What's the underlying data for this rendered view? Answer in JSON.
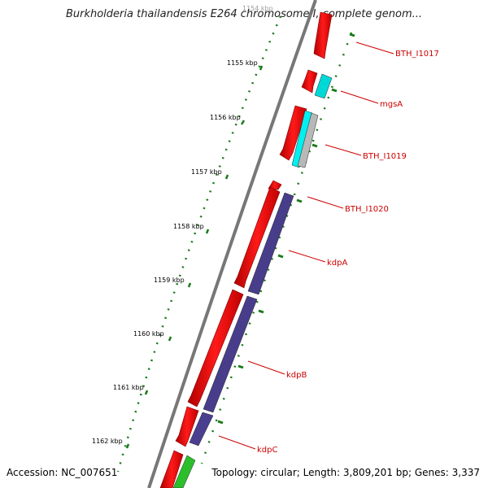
{
  "title": "Burkholderia thailandensis E264 chromosome I, complete genom...",
  "accession": "Accession: NC_007651",
  "topology": "Topology: circular; Length: 3,809,201 bp; Genes: 3,337",
  "ticks": [
    {
      "label": "1154 kbp"
    },
    {
      "label": "1155 kbp"
    },
    {
      "label": "1156 kbp"
    },
    {
      "label": "1157 kbp"
    },
    {
      "label": "1158 kbp"
    },
    {
      "label": "1159 kbp"
    },
    {
      "label": "1160 kbp"
    },
    {
      "label": "1161 kbp"
    },
    {
      "label": "1162 kbp"
    }
  ],
  "genes": [
    {
      "label": "BTH_I1017"
    },
    {
      "label": "mgsA"
    },
    {
      "label": "BTH_I1019"
    },
    {
      "label": "BTH_I1020"
    },
    {
      "label": "kdpA"
    },
    {
      "label": "kdpB"
    },
    {
      "label": "kdpC"
    }
  ],
  "colors": {
    "cds": "#ff0000",
    "cds_shade": "#b80000",
    "trna_cyan": "#00e0e0",
    "purple": "#483d8b",
    "grey": "#a0a0a0",
    "green": "#2bc02b",
    "tick_green": "#1a7a1a",
    "label_red": "#cc0000"
  }
}
